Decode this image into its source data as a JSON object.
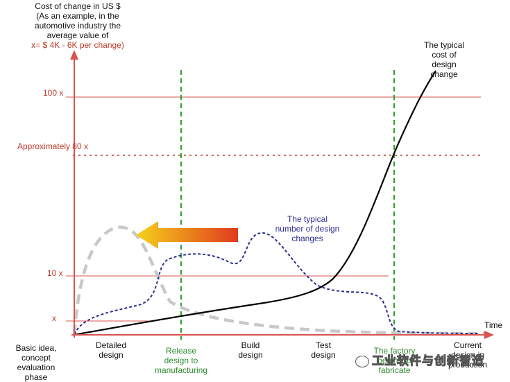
{
  "y_axis_title": {
    "line1": "Cost of change in US $",
    "line2": "(As an example, in the",
    "line3": "automotive industry the",
    "line4": "average value of",
    "line5": "x= $ 4K - 6K  per change)"
  },
  "x_axis_title": "Time",
  "y_levels": {
    "l100": "100 x",
    "l80": "Approximately 80 x",
    "l10": "10 x",
    "l1": "x"
  },
  "phases": {
    "p1": [
      "Basic idea,",
      "concept",
      "evaluation",
      "phase"
    ],
    "p2": [
      "Detailed",
      "design"
    ],
    "p3": [
      "Release",
      "design to",
      "manufacturing"
    ],
    "p4": [
      "Build",
      "design"
    ],
    "p5": [
      "Test",
      "design"
    ],
    "p6": [
      "The factory",
      "begins to",
      "fabricate"
    ],
    "p7": [
      "Current",
      "design in",
      "production"
    ]
  },
  "curves": {
    "cost": [
      "The typical",
      "cost of",
      "design",
      "change"
    ],
    "changes": [
      "The typical",
      "number of design",
      "changes"
    ]
  },
  "watermark": "工业软件与创新智造",
  "colors": {
    "axis": "#d9534f",
    "milestone": "#2e9e2e",
    "cost_curve": "#000000",
    "changes_curve": "#2b2e8f",
    "gray_curve": "#c8c8c8",
    "arrow_start": "#f5d21a",
    "arrow_end": "#e03a1e"
  }
}
